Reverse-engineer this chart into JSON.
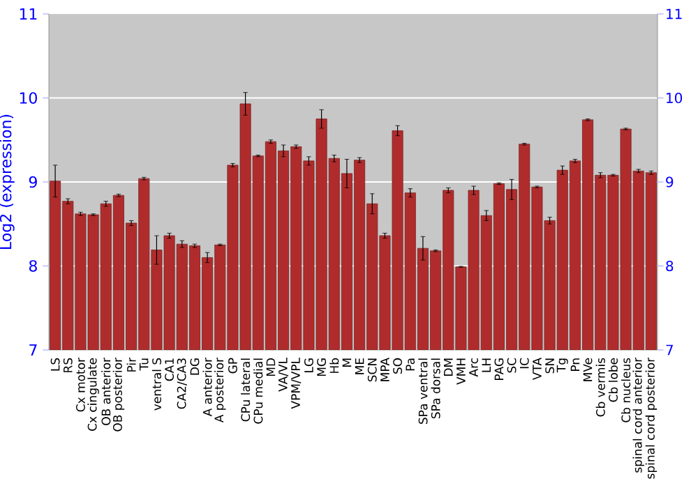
{
  "chart_data": {
    "type": "bar",
    "ylabel": "Log2 (expression)",
    "categories": [
      "LS",
      "RS",
      "Cx motor",
      "Cx cingulate",
      "OB anterior",
      "OB posterior",
      "Pir",
      "Tu",
      "ventral S",
      "CA1",
      "CA2/CA3",
      "DG",
      "A anterior",
      "A posterior",
      "GP",
      "CPu lateral",
      "CPu medial",
      "MD",
      "VA/VL",
      "VPM/VPL",
      "LG",
      "MG",
      "Hb",
      "M",
      "ME",
      "SCN",
      "MPA",
      "SO",
      "Pa",
      "SPa ventral",
      "SPa dorsal",
      "DM",
      "VMH",
      "Arc",
      "LH",
      "PAG",
      "SC",
      "IC",
      "VTA",
      "SN",
      "Tg",
      "Pn",
      "MVe",
      "Cb vermis",
      "Cb lobe",
      "Cb nucleus",
      "spinal cord anterior",
      "spinal cord posterior"
    ],
    "values": [
      9.01,
      8.77,
      8.62,
      8.61,
      8.74,
      8.84,
      8.51,
      9.04,
      8.19,
      8.36,
      8.26,
      8.24,
      8.1,
      8.25,
      9.2,
      9.93,
      9.31,
      9.48,
      9.37,
      9.42,
      9.25,
      9.75,
      9.28,
      9.1,
      9.26,
      8.74,
      8.36,
      9.61,
      8.87,
      8.21,
      8.18,
      8.9,
      7.99,
      8.9,
      8.6,
      8.98,
      8.91,
      9.45,
      8.94,
      8.54,
      9.14,
      9.25,
      9.74,
      9.08,
      9.08,
      9.63,
      9.13,
      9.11
    ],
    "errors": [
      0.19,
      0.03,
      0.02,
      0.01,
      0.03,
      0.015,
      0.03,
      0.015,
      0.17,
      0.03,
      0.04,
      0.02,
      0.06,
      0.01,
      0.02,
      0.135,
      0.01,
      0.02,
      0.07,
      0.02,
      0.05,
      0.11,
      0.04,
      0.17,
      0.03,
      0.12,
      0.03,
      0.06,
      0.05,
      0.14,
      0.01,
      0.03,
      0.005,
      0.05,
      0.06,
      0.01,
      0.12,
      0.01,
      0.01,
      0.04,
      0.05,
      0.02,
      0.01,
      0.03,
      0.01,
      0.01,
      0.02,
      0.02
    ],
    "color": "#b02c2c",
    "ylim": [
      7,
      11
    ],
    "yticks": [
      7,
      8,
      9,
      10,
      11
    ],
    "y2lim": [
      7,
      11
    ],
    "y2ticks": [
      7,
      8,
      9,
      10,
      11
    ],
    "grid": "y"
  }
}
